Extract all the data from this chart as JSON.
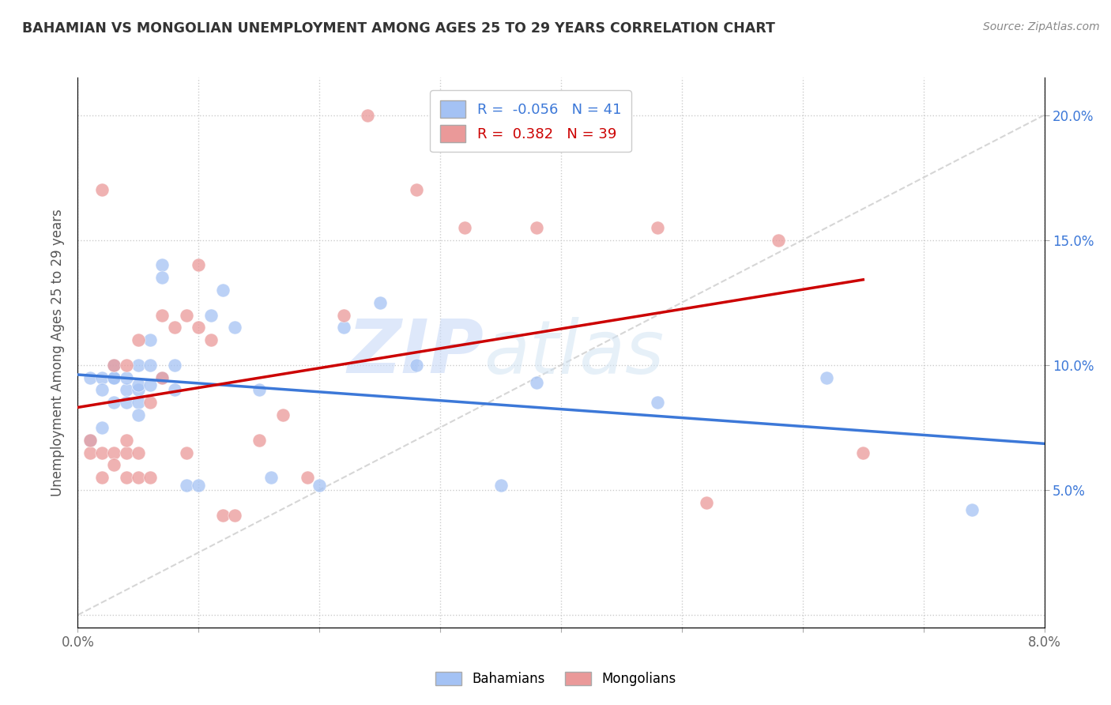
{
  "title": "BAHAMIAN VS MONGOLIAN UNEMPLOYMENT AMONG AGES 25 TO 29 YEARS CORRELATION CHART",
  "source": "Source: ZipAtlas.com",
  "ylabel": "Unemployment Among Ages 25 to 29 years",
  "xlim": [
    0.0,
    0.08
  ],
  "ylim": [
    -0.005,
    0.215
  ],
  "bahamians_color": "#a4c2f4",
  "mongolians_color": "#ea9999",
  "bahamians_line_color": "#3c78d8",
  "mongolians_line_color": "#cc0000",
  "diag_line_color": "#cccccc",
  "right_tick_color": "#3c78d8",
  "left_tick_color": "#666666",
  "bahamians_R": -0.056,
  "bahamians_N": 41,
  "mongolians_R": 0.382,
  "mongolians_N": 39,
  "watermark_zip": "ZIP",
  "watermark_atlas": "atlas",
  "bahamians_x": [
    0.001,
    0.002,
    0.002,
    0.002,
    0.003,
    0.003,
    0.003,
    0.003,
    0.004,
    0.004,
    0.004,
    0.005,
    0.005,
    0.005,
    0.005,
    0.005,
    0.006,
    0.006,
    0.006,
    0.007,
    0.007,
    0.007,
    0.008,
    0.008,
    0.009,
    0.01,
    0.011,
    0.012,
    0.013,
    0.015,
    0.016,
    0.02,
    0.022,
    0.025,
    0.028,
    0.035,
    0.038,
    0.048,
    0.062,
    0.074,
    0.001
  ],
  "bahamians_y": [
    0.095,
    0.095,
    0.09,
    0.075,
    0.095,
    0.085,
    0.095,
    0.1,
    0.09,
    0.085,
    0.095,
    0.09,
    0.085,
    0.1,
    0.092,
    0.08,
    0.11,
    0.1,
    0.092,
    0.14,
    0.135,
    0.095,
    0.1,
    0.09,
    0.052,
    0.052,
    0.12,
    0.13,
    0.115,
    0.09,
    0.055,
    0.052,
    0.115,
    0.125,
    0.1,
    0.052,
    0.093,
    0.085,
    0.095,
    0.042,
    0.07
  ],
  "mongolians_x": [
    0.001,
    0.001,
    0.002,
    0.002,
    0.003,
    0.003,
    0.003,
    0.004,
    0.004,
    0.004,
    0.004,
    0.005,
    0.005,
    0.005,
    0.006,
    0.006,
    0.007,
    0.007,
    0.008,
    0.009,
    0.009,
    0.01,
    0.01,
    0.011,
    0.012,
    0.013,
    0.015,
    0.017,
    0.019,
    0.022,
    0.024,
    0.028,
    0.032,
    0.038,
    0.048,
    0.052,
    0.058,
    0.065,
    0.002
  ],
  "mongolians_y": [
    0.065,
    0.07,
    0.065,
    0.055,
    0.065,
    0.06,
    0.1,
    0.065,
    0.1,
    0.07,
    0.055,
    0.11,
    0.065,
    0.055,
    0.055,
    0.085,
    0.12,
    0.095,
    0.115,
    0.065,
    0.12,
    0.115,
    0.14,
    0.11,
    0.04,
    0.04,
    0.07,
    0.08,
    0.055,
    0.12,
    0.2,
    0.17,
    0.155,
    0.155,
    0.155,
    0.045,
    0.15,
    0.065,
    0.17
  ]
}
